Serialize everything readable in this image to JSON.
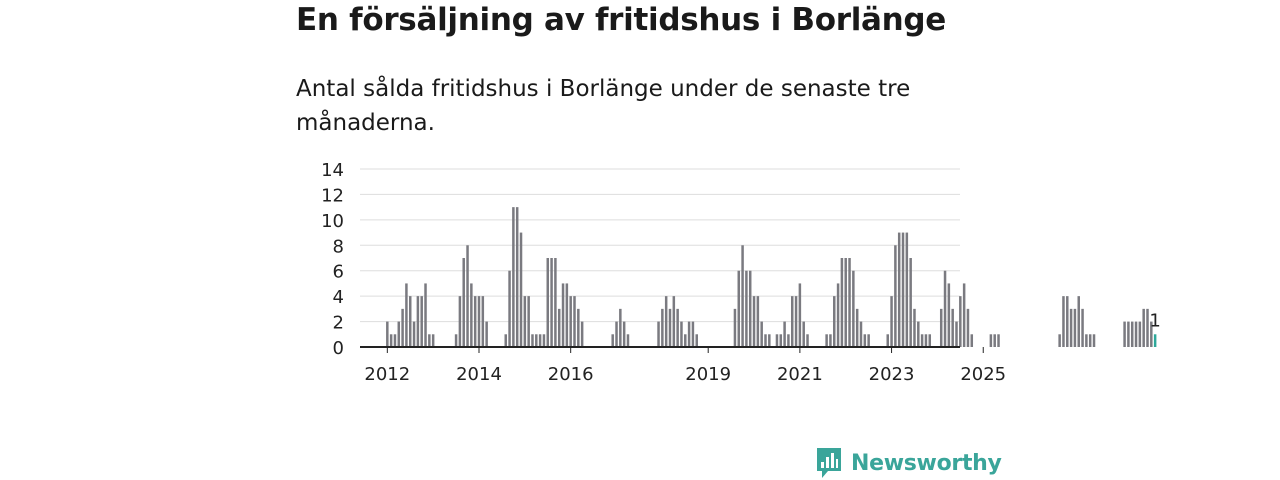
{
  "title": "En försäljning av fritidshus i Borlänge",
  "subtitle": "Antal sålda fritidshus i Borlänge under de senaste tre månaderna.",
  "brand": {
    "name": "Newsworthy"
  },
  "colors": {
    "bar": "#7a7a80",
    "highlight": "#2ea89a",
    "grid": "#dddddd",
    "axis": "#222222",
    "brand": "#3aa59a"
  },
  "chart_data": {
    "type": "bar",
    "title": "En försäljning av fritidshus i Borlänge",
    "xlabel": "",
    "ylabel": "",
    "ylim": [
      0,
      14
    ],
    "yticks": [
      0,
      2,
      4,
      6,
      8,
      10,
      12,
      14
    ],
    "xtick_labels": [
      "2012",
      "2014",
      "2016",
      "2019",
      "2021",
      "2023",
      "2025"
    ],
    "xtick_years": [
      2012,
      2014,
      2016,
      2019,
      2021,
      2023,
      2025
    ],
    "start": "2011-12",
    "last_value_label": "1",
    "values": [
      0,
      2,
      1,
      1,
      2,
      3,
      5,
      4,
      2,
      4,
      4,
      5,
      1,
      1,
      0,
      0,
      0,
      0,
      0,
      1,
      4,
      7,
      8,
      5,
      4,
      4,
      4,
      2,
      0,
      0,
      0,
      0,
      1,
      6,
      11,
      11,
      9,
      4,
      4,
      1,
      1,
      1,
      1,
      7,
      7,
      7,
      3,
      5,
      5,
      4,
      4,
      3,
      2,
      0,
      0,
      0,
      0,
      0,
      0,
      0,
      1,
      2,
      3,
      2,
      1,
      0,
      0,
      0,
      0,
      0,
      0,
      0,
      2,
      3,
      4,
      3,
      4,
      3,
      2,
      1,
      2,
      2,
      1,
      0,
      0,
      0,
      0,
      0,
      0,
      0,
      0,
      0,
      3,
      6,
      8,
      6,
      6,
      4,
      4,
      2,
      1,
      1,
      0,
      1,
      1,
      2,
      1,
      4,
      4,
      5,
      2,
      1,
      0,
      0,
      0,
      0,
      1,
      1,
      4,
      5,
      7,
      7,
      7,
      6,
      3,
      2,
      1,
      1,
      0,
      0,
      0,
      0,
      1,
      4,
      8,
      9,
      9,
      9,
      7,
      3,
      2,
      1,
      1,
      1,
      0,
      0,
      3,
      6,
      5,
      3,
      2,
      4,
      5,
      3,
      1,
      0,
      0,
      0,
      0,
      1,
      1,
      1,
      0,
      0,
      0,
      0,
      0,
      0,
      0,
      0,
      0,
      0,
      0,
      0,
      0,
      0,
      0,
      1,
      4,
      4,
      3,
      3,
      4,
      3,
      1,
      1,
      1,
      0,
      0,
      0,
      0,
      0,
      0,
      0,
      2,
      2,
      2,
      2,
      2,
      3,
      3,
      2,
      1
    ],
    "series": [
      {
        "name": "Antal sålda fritidshus",
        "values": "see values"
      }
    ]
  }
}
